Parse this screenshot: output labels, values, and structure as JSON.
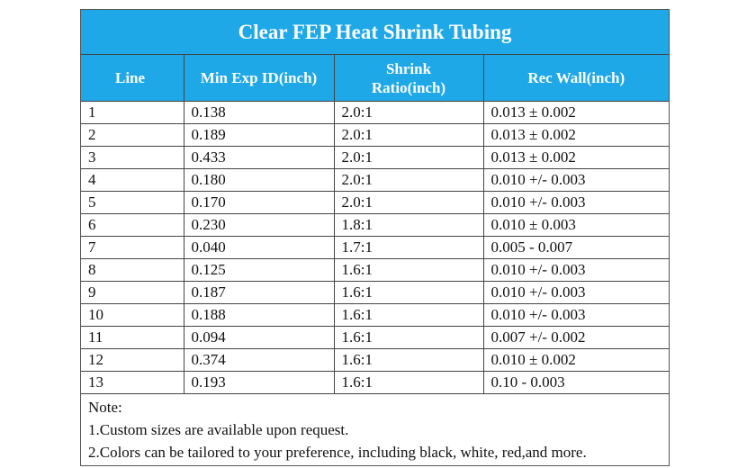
{
  "title": "Clear FEP Heat Shrink Tubing",
  "headers": {
    "line": "Line",
    "min_exp_id": "Min Exp ID(inch)",
    "shrink_ratio_1": "Shrink",
    "shrink_ratio_2": "Ratio(inch)",
    "rec_wall": "Rec Wall(inch)"
  },
  "rows": [
    {
      "line": "1",
      "min_exp_id": "0.138",
      "shrink_ratio": "2.0:1",
      "rec_wall": "0.013 ± 0.002"
    },
    {
      "line": "2",
      "min_exp_id": "0.189",
      "shrink_ratio": "2.0:1",
      "rec_wall": "0.013 ± 0.002"
    },
    {
      "line": "3",
      "min_exp_id": "0.433",
      "shrink_ratio": "2.0:1",
      "rec_wall": "0.013 ± 0.002"
    },
    {
      "line": "4",
      "min_exp_id": "0.180",
      "shrink_ratio": "2.0:1",
      "rec_wall": "0.010 +/- 0.003"
    },
    {
      "line": "5",
      "min_exp_id": "0.170",
      "shrink_ratio": "2.0:1",
      "rec_wall": "0.010 +/- 0.003"
    },
    {
      "line": "6",
      "min_exp_id": "0.230",
      "shrink_ratio": "1.8:1",
      "rec_wall": "0.010 ± 0.003"
    },
    {
      "line": "7",
      "min_exp_id": "0.040",
      "shrink_ratio": "1.7:1",
      "rec_wall": "0.005 - 0.007"
    },
    {
      "line": "8",
      "min_exp_id": "0.125",
      "shrink_ratio": "1.6:1",
      "rec_wall": "0.010 +/- 0.003"
    },
    {
      "line": "9",
      "min_exp_id": "0.187",
      "shrink_ratio": "1.6:1",
      "rec_wall": "0.010 +/- 0.003"
    },
    {
      "line": "10",
      "min_exp_id": "0.188",
      "shrink_ratio": "1.6:1",
      "rec_wall": "0.010 +/- 0.003"
    },
    {
      "line": "11",
      "min_exp_id": "0.094",
      "shrink_ratio": "1.6:1",
      "rec_wall": "0.007 +/- 0.002"
    },
    {
      "line": "12",
      "min_exp_id": "0.374",
      "shrink_ratio": "1.6:1",
      "rec_wall": "0.010 ± 0.002"
    },
    {
      "line": "13",
      "min_exp_id": "0.193",
      "shrink_ratio": "1.6:1",
      "rec_wall": "0.10  - 0.003"
    }
  ],
  "notes": {
    "heading": "Note:",
    "items": [
      "1.Custom sizes are available upon request.",
      "2.Colors can be tailored to your preference, including black, white, red,and more."
    ]
  },
  "colors": {
    "header_bg": "#1ea8e8",
    "header_text": "#ffffff"
  }
}
